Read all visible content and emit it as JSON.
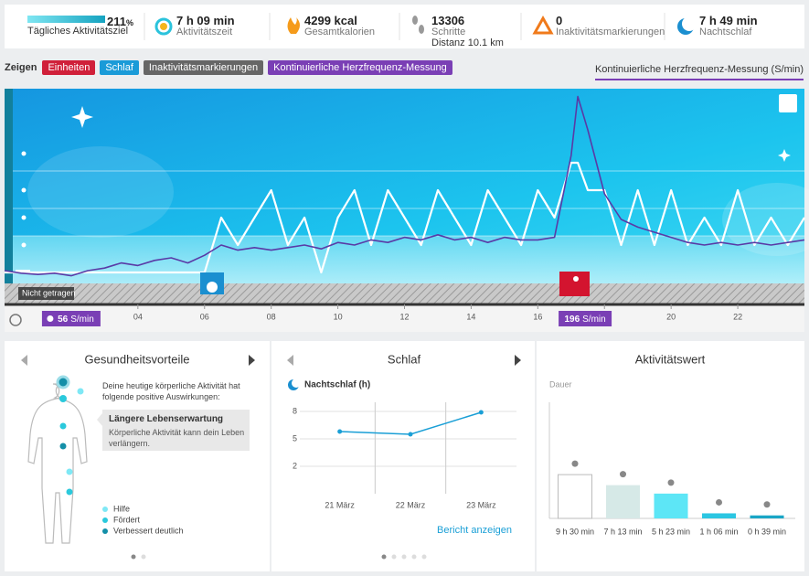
{
  "header": {
    "stats": [
      {
        "value": "211",
        "unit": "%",
        "label": "Tägliches Aktivitätsziel"
      },
      {
        "value": "7 h 09 min",
        "label": "Aktivitätszeit"
      },
      {
        "value": "4299 kcal",
        "label": "Gesamtkalorien"
      },
      {
        "value": "13306",
        "label": "Schritte",
        "detail": "Distanz 10.1 km"
      },
      {
        "value": "0",
        "label": "Inaktivitätsmarkierungen"
      },
      {
        "value": "7 h 49 min",
        "label": "Nachtschlaf"
      }
    ]
  },
  "toolbar": {
    "label": "Zeigen",
    "filters": [
      "Einheiten",
      "Schlaf",
      "Inaktivitätsmarkierungen",
      "Kontinuierliche Herzfrequenz-Messung"
    ],
    "tab": "Kontinuierliche Herzfrequenz-Messung (S/min)"
  },
  "main_chart": {
    "type": "line",
    "x": [
      0,
      0.5,
      1,
      1.5,
      2,
      2.5,
      3,
      3.5,
      4,
      4.5,
      5,
      5.5,
      6,
      6.5,
      7,
      7.5,
      8,
      8.5,
      9,
      9.5,
      10,
      10.5,
      11,
      11.5,
      12,
      12.5,
      13,
      13.5,
      14,
      14.5,
      15,
      15.5,
      16,
      16.5,
      17,
      17.2,
      17.5,
      18,
      18.5,
      19,
      19.5,
      20,
      20.5,
      21,
      21.5,
      22,
      22.5,
      23,
      23.5,
      24
    ],
    "xlim": [
      0,
      24
    ],
    "xticks": [
      {
        "value": 4,
        "label": "04"
      },
      {
        "value": 6,
        "label": "06"
      },
      {
        "value": 8,
        "label": "08"
      },
      10,
      12,
      14,
      16,
      18,
      20,
      22
    ],
    "ylim": [
      50,
      200
    ],
    "y2lim": [
      0,
      4
    ],
    "series": [
      {
        "color": "#5a3aa6",
        "values": [
          60,
          58,
          57,
          58,
          56,
          60,
          62,
          66,
          64,
          68,
          70,
          66,
          72,
          80,
          76,
          78,
          76,
          78,
          80,
          77,
          82,
          80,
          84,
          82,
          86,
          84,
          88,
          84,
          86,
          82,
          86,
          84,
          84,
          86,
          150,
          196,
          170,
          120,
          100,
          94,
          90,
          86,
          82,
          80,
          82,
          80,
          82,
          80,
          82,
          84
        ]
      },
      {
        "color": "#ffffff",
        "axis": "y2",
        "values": [
          0,
          0,
          0,
          0,
          0,
          0,
          0,
          0,
          0,
          0,
          0,
          0,
          0,
          2,
          1,
          2,
          3,
          1,
          2,
          0,
          2,
          3,
          1,
          3,
          2,
          1,
          3,
          2,
          1,
          3,
          2,
          1,
          3,
          2,
          4,
          4,
          3,
          3,
          1,
          3,
          1,
          3,
          1,
          2,
          1,
          3,
          1,
          2,
          1,
          2
        ]
      }
    ],
    "not_worn": "Nicht getragen",
    "min": {
      "value": 56,
      "unit": "S/min"
    },
    "max": {
      "value": 196,
      "unit": "S/min"
    }
  },
  "panels": {
    "benefits": {
      "title": "Gesundheitsvorteile",
      "intro": "Deine heutige körperliche Aktivität hat folgende positive Auswirkungen:",
      "card_title": "Längere Lebenserwartung",
      "card_text": "Körperliche Aktivität kann dein Leben verlängern.",
      "legend": [
        "Hilfe",
        "Fördert",
        "Verbessert deutlich"
      ]
    },
    "sleep": {
      "title": "Schlaf",
      "link": "Bericht anzeigen",
      "chart": {
        "type": "line",
        "title": "Nachtschlaf (h)",
        "categories": [
          "21 März",
          "22 März",
          "23 März"
        ],
        "values": [
          5.8,
          5.5,
          7.9
        ],
        "color": "#1a9fd6",
        "ylim": [
          -1,
          9
        ],
        "yticks": [
          2,
          5,
          8
        ],
        "grid": true
      }
    },
    "activity": {
      "title": "Aktivitätswert",
      "chart": {
        "type": "bar",
        "subtitle": "Dauer",
        "values": [
          570,
          433,
          323,
          66,
          39
        ],
        "value_labels": [
          "9 h 30 min",
          "7 h 13 min",
          "5 h 23 min",
          "1 h 06 min",
          "0 h 39 min"
        ],
        "colors": [
          "#ffffff",
          "#d6e9e7",
          "#5de6f6",
          "#2cc6e2",
          "#1aa6c6"
        ],
        "ylim": [
          0,
          1500
        ]
      }
    }
  }
}
